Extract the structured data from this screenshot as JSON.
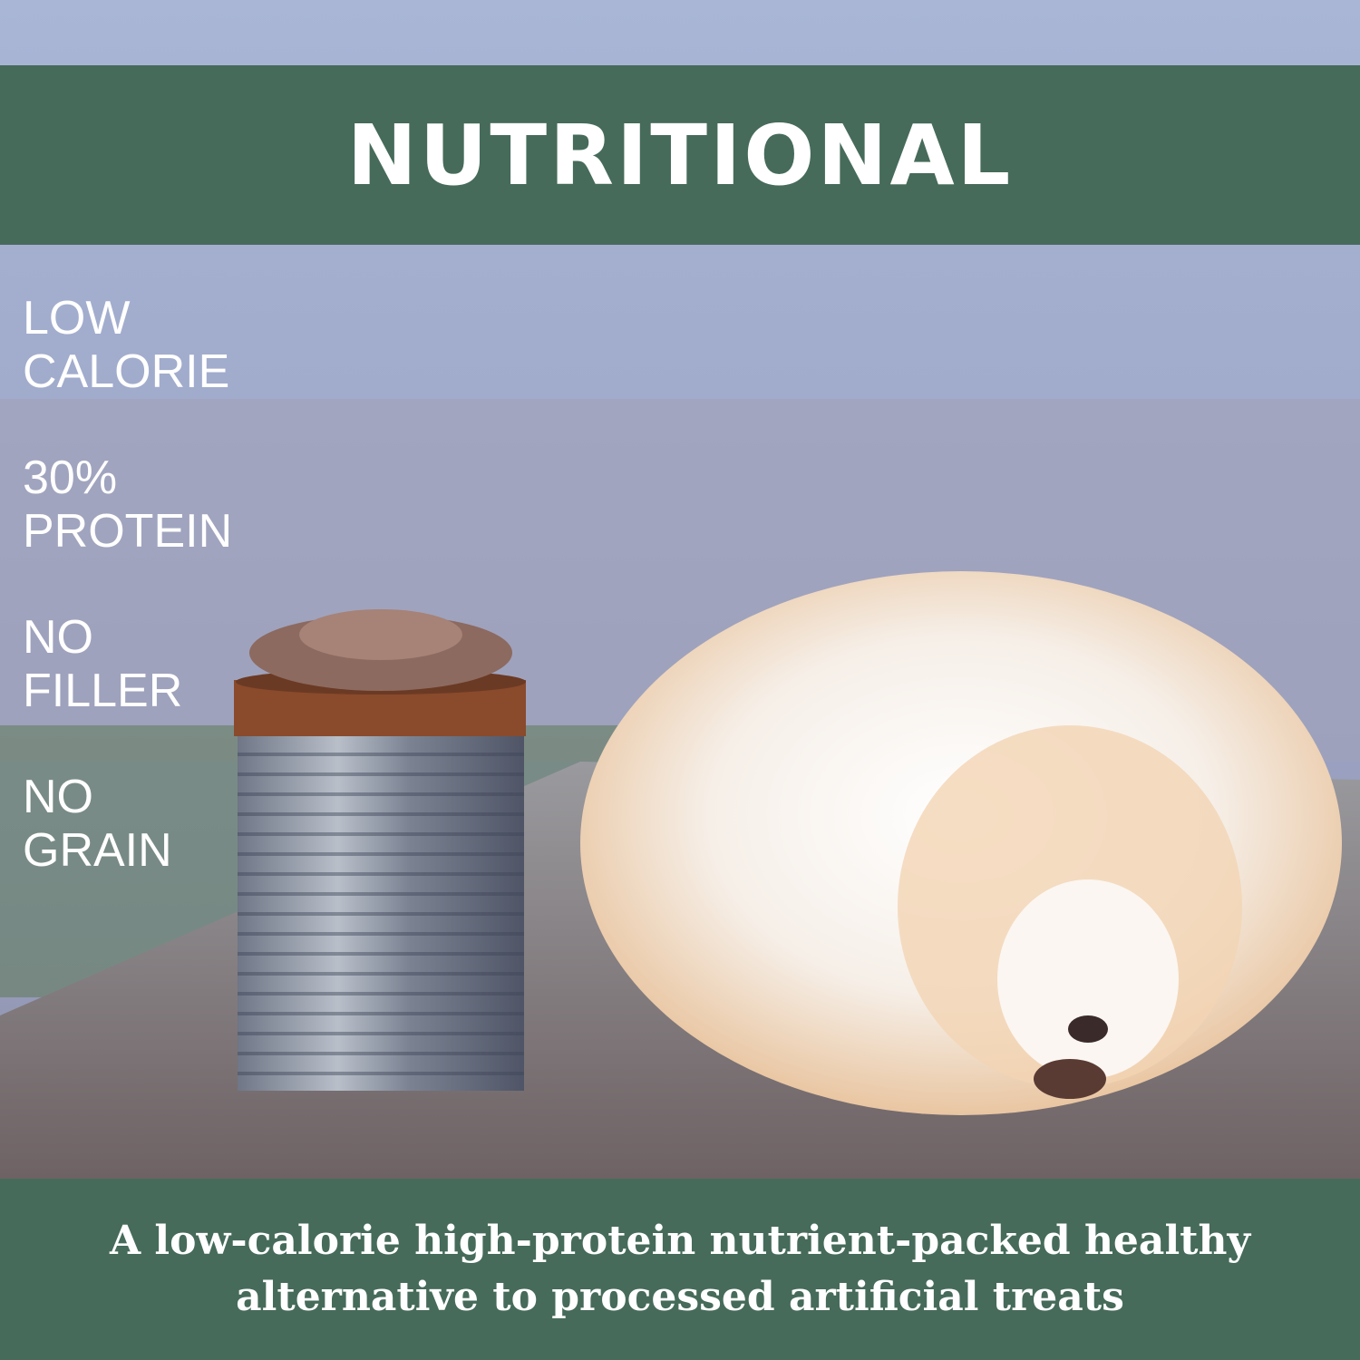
{
  "header": {
    "title": "NUTRITIONAL"
  },
  "features": [
    {
      "lines": [
        "LOW",
        "CALORIE"
      ]
    },
    {
      "lines": [
        "30%",
        "PROTEIN"
      ]
    },
    {
      "lines": [
        "NO",
        "FILLER"
      ]
    },
    {
      "lines": [
        "NO",
        "GRAIN"
      ]
    }
  ],
  "footer": {
    "lines": [
      "A low-calorie high-protein nutrient-packed healthy",
      "alternative to processed artificial treats"
    ]
  },
  "colors": {
    "band": "#466b5a",
    "text": "#ffffff"
  }
}
